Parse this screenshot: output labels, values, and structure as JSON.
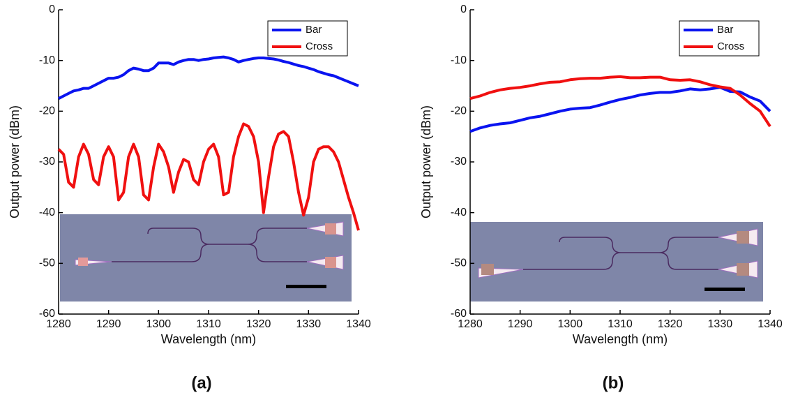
{
  "chart_data": [
    {
      "type": "line",
      "label": "(a)",
      "x_label": "Wavelength (nm)",
      "y_label": "Output power (dBm)",
      "x": [
        1280,
        1281,
        1282,
        1283,
        1284,
        1285,
        1286,
        1287,
        1288,
        1289,
        1290,
        1291,
        1292,
        1293,
        1294,
        1295,
        1296,
        1297,
        1298,
        1299,
        1300,
        1301,
        1302,
        1303,
        1304,
        1305,
        1306,
        1307,
        1308,
        1309,
        1310,
        1311,
        1312,
        1313,
        1314,
        1315,
        1316,
        1317,
        1318,
        1319,
        1320,
        1321,
        1322,
        1323,
        1324,
        1325,
        1326,
        1327,
        1328,
        1329,
        1330,
        1331,
        1332,
        1333,
        1334,
        1335,
        1336,
        1337,
        1338,
        1339,
        1340
      ],
      "series": [
        {
          "name": "Bar",
          "color": "#0a14f0",
          "values": [
            -17.5,
            -17,
            -16.5,
            -16,
            -15.8,
            -15.5,
            -15.5,
            -15,
            -14.5,
            -14,
            -13.5,
            -13.5,
            -13.3,
            -12.8,
            -12,
            -11.5,
            -11.7,
            -12,
            -12,
            -11.5,
            -10.5,
            -10.5,
            -10.5,
            -10.8,
            -10.3,
            -10,
            -9.8,
            -9.8,
            -10,
            -9.8,
            -9.7,
            -9.5,
            -9.4,
            -9.3,
            -9.5,
            -9.8,
            -10.3,
            -10,
            -9.8,
            -9.6,
            -9.5,
            -9.5,
            -9.6,
            -9.7,
            -9.9,
            -10.2,
            -10.4,
            -10.7,
            -11,
            -11.2,
            -11.5,
            -11.8,
            -12.2,
            -12.5,
            -12.8,
            -13,
            -13.4,
            -13.8,
            -14.2,
            -14.6,
            -15
          ]
        },
        {
          "name": "Cross",
          "color": "#f01010",
          "values": [
            -27.5,
            -28.5,
            -34,
            -35,
            -29,
            -26.5,
            -28.5,
            -33.5,
            -34.5,
            -29,
            -27,
            -29,
            -37.5,
            -36,
            -29,
            -26.5,
            -29,
            -36.5,
            -37.5,
            -31,
            -26.5,
            -28,
            -31,
            -36,
            -32,
            -29.5,
            -30,
            -33.5,
            -34.5,
            -30,
            -27.5,
            -26.5,
            -29,
            -36.5,
            -36,
            -29,
            -25,
            -22.5,
            -23,
            -25,
            -30,
            -40,
            -33,
            -27,
            -24.5,
            -24,
            -25,
            -30,
            -36,
            -40.5,
            -37,
            -30,
            -27.5,
            -27,
            -27,
            -28,
            -30,
            -33.5,
            -37,
            -40,
            -43.5
          ]
        }
      ],
      "xlim": [
        1280,
        1340
      ],
      "ylim": [
        -60,
        0
      ],
      "xticks": [
        1280,
        1290,
        1300,
        1310,
        1320,
        1330,
        1340
      ],
      "yticks": [
        -60,
        -50,
        -40,
        -30,
        -20,
        -10,
        0
      ],
      "legend": "upper right"
    },
    {
      "type": "line",
      "label": "(b)",
      "x_label": "Wavelength (nm)",
      "y_label": "Output power (dBm)",
      "x": [
        1280,
        1282,
        1284,
        1286,
        1288,
        1290,
        1292,
        1294,
        1296,
        1298,
        1300,
        1302,
        1304,
        1306,
        1308,
        1310,
        1312,
        1314,
        1316,
        1318,
        1320,
        1322,
        1324,
        1326,
        1328,
        1330,
        1332,
        1334,
        1336,
        1338,
        1340
      ],
      "series": [
        {
          "name": "Bar",
          "color": "#0a14f0",
          "values": [
            -24,
            -23.3,
            -22.8,
            -22.5,
            -22.3,
            -21.8,
            -21.3,
            -21,
            -20.5,
            -20,
            -19.6,
            -19.4,
            -19.3,
            -18.8,
            -18.2,
            -17.7,
            -17.3,
            -16.8,
            -16.5,
            -16.3,
            -16.3,
            -16,
            -15.6,
            -15.8,
            -15.6,
            -15.3,
            -16.1,
            -16.2,
            -17.2,
            -18,
            -20
          ]
        },
        {
          "name": "Cross",
          "color": "#f01010",
          "values": [
            -17.5,
            -17,
            -16.3,
            -15.8,
            -15.5,
            -15.3,
            -15,
            -14.6,
            -14.3,
            -14.2,
            -13.8,
            -13.6,
            -13.5,
            -13.5,
            -13.3,
            -13.2,
            -13.4,
            -13.4,
            -13.3,
            -13.3,
            -13.8,
            -13.9,
            -13.8,
            -14.2,
            -14.8,
            -15.2,
            -15.5,
            -16.8,
            -18.5,
            -20,
            -23
          ]
        }
      ],
      "xlim": [
        1280,
        1340
      ],
      "ylim": [
        -60,
        0
      ],
      "xticks": [
        1280,
        1290,
        1300,
        1310,
        1320,
        1330,
        1340
      ],
      "yticks": [
        -60,
        -50,
        -40,
        -30,
        -20,
        -10,
        0
      ],
      "legend": "upper right"
    }
  ]
}
